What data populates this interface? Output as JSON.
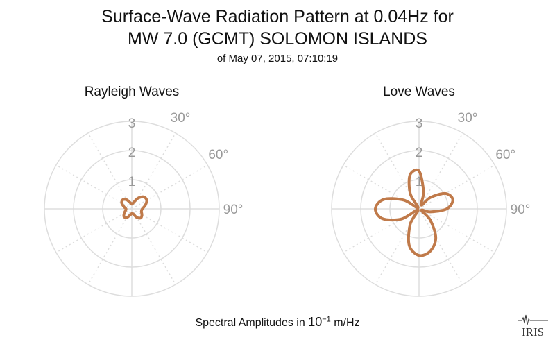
{
  "title_line1": "Surface-Wave Radiation Pattern at 0.04Hz for",
  "title_line2": "MW 7.0 (GCMT) SOLOMON ISLANDS",
  "subtitle": "of May 07, 2015, 07:10:19",
  "footer": {
    "prefix": "Spectral Amplitudes in ",
    "base": "10",
    "exponent": "−1",
    "unit": " m/Hz"
  },
  "logo_text": "IRIS",
  "colors": {
    "curve": "#c07a4a",
    "grid": "#dddddd",
    "label": "#999999"
  },
  "chart_data": [
    {
      "type": "polar",
      "title": "Rayleigh Waves",
      "radial_ticks": [
        "1",
        "2",
        "3"
      ],
      "rmax": 3,
      "angle_labels": [
        "30°",
        "60°",
        "90°"
      ],
      "series": [
        {
          "azimuth_deg": [
            0,
            15,
            30,
            45,
            60,
            75,
            90,
            105,
            120,
            135,
            150,
            165,
            180,
            195,
            210,
            225,
            240,
            255,
            270,
            285,
            300,
            315,
            330,
            345,
            360
          ],
          "amplitude": [
            0.16,
            0.22,
            0.42,
            0.58,
            0.59,
            0.48,
            0.36,
            0.34,
            0.4,
            0.44,
            0.34,
            0.18,
            0.16,
            0.22,
            0.35,
            0.38,
            0.3,
            0.22,
            0.2,
            0.28,
            0.4,
            0.44,
            0.36,
            0.22,
            0.16
          ]
        }
      ]
    },
    {
      "type": "polar",
      "title": "Love Waves",
      "radial_ticks": [
        "1",
        "2",
        "3"
      ],
      "rmax": 3,
      "angle_labels": [
        "30°",
        "60°",
        "90°"
      ],
      "series": [
        {
          "azimuth_deg": [
            0,
            15,
            30,
            45,
            60,
            75,
            90,
            105,
            120,
            135,
            150,
            165,
            180,
            195,
            210,
            225,
            240,
            255,
            270,
            285,
            300,
            315,
            330,
            345,
            360
          ],
          "amplitude": [
            1.3,
            0.6,
            0.15,
            0.55,
            1.05,
            1.2,
            0.95,
            0.4,
            0.1,
            0.55,
            1.15,
            1.5,
            1.6,
            1.3,
            0.6,
            0.05,
            0.7,
            1.3,
            1.5,
            1.25,
            0.6,
            0.05,
            0.6,
            1.2,
            1.3
          ]
        }
      ]
    }
  ]
}
